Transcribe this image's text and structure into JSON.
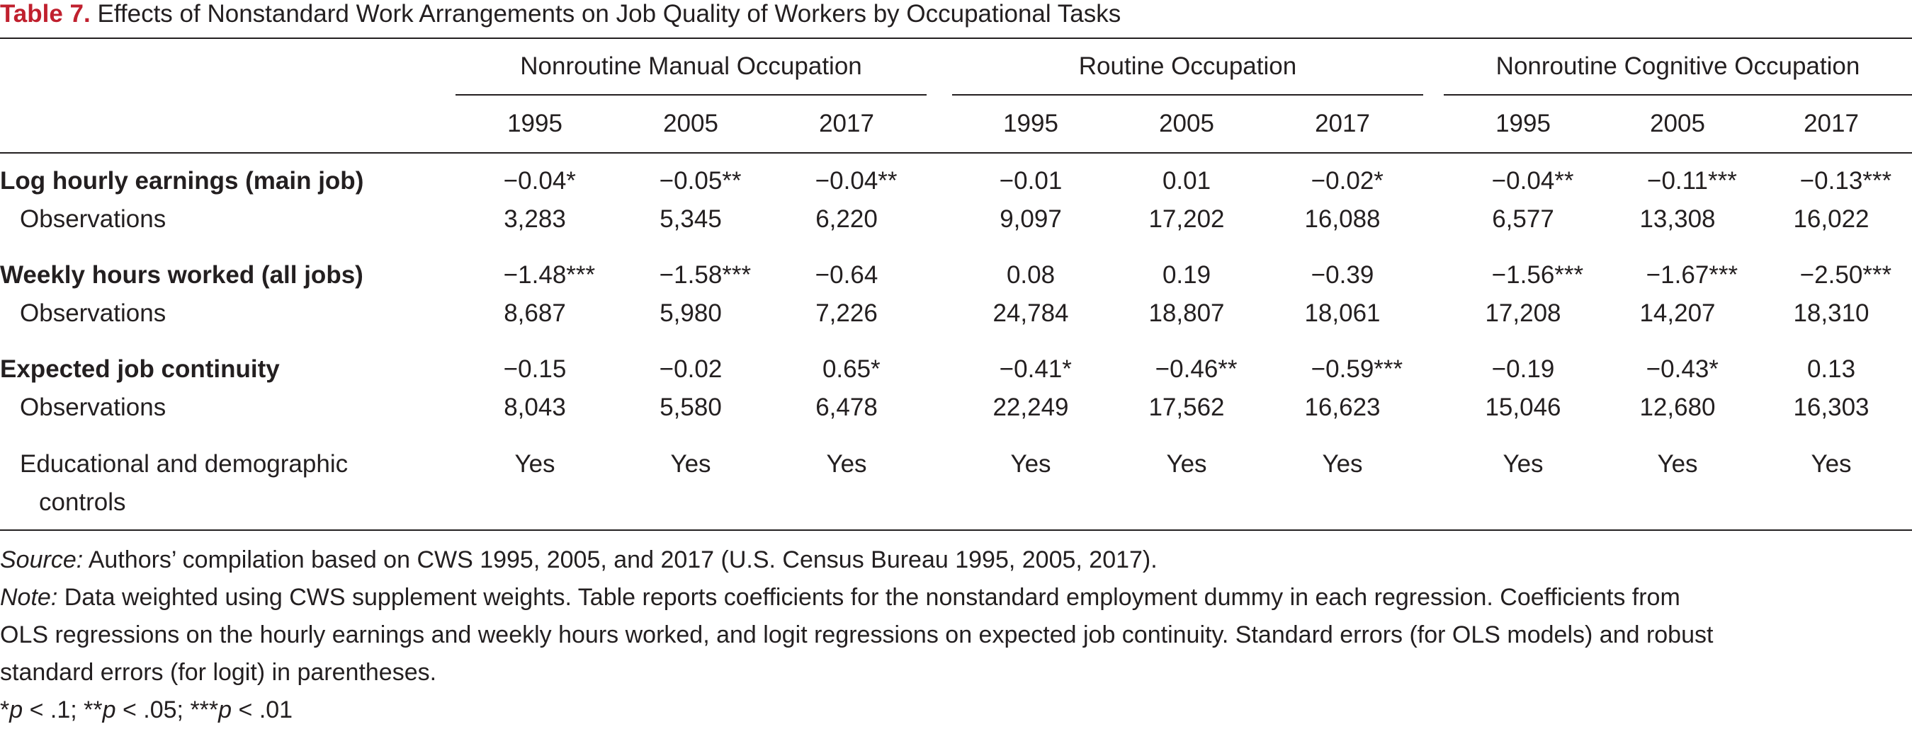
{
  "title": {
    "label": "Table 7.",
    "text": " Effects of Nonstandard Work Arrangements on Job Quality of Workers by Occupational Tasks"
  },
  "groups": [
    "Nonroutine Manual Occupation",
    "Routine Occupation",
    "Nonroutine Cognitive Occupation"
  ],
  "years": [
    "1995",
    "2005",
    "2017",
    "1995",
    "2005",
    "2017",
    "1995",
    "2005",
    "2017"
  ],
  "rows": [
    {
      "label": "Log hourly earnings (main job)",
      "bold": true,
      "cells": [
        "−0.04*",
        "−0.05**",
        "−0.04**",
        "−0.01",
        "0.01",
        "−0.02*",
        "−0.04**",
        "−0.11***",
        "−0.13***"
      ]
    },
    {
      "label": "Observations",
      "bold": false,
      "cells": [
        "3,283",
        "5,345",
        "6,220",
        "9,097",
        "17,202",
        "16,088",
        "6,577",
        "13,308",
        "16,022"
      ]
    },
    {
      "label": "Weekly hours worked (all jobs)",
      "bold": true,
      "cells": [
        "−1.48***",
        "−1.58***",
        "−0.64",
        "0.08",
        "0.19",
        "−0.39",
        "−1.56***",
        "−1.67***",
        "−2.50***"
      ]
    },
    {
      "label": "Observations",
      "bold": false,
      "cells": [
        "8,687",
        "5,980",
        "7,226",
        "24,784",
        "18,807",
        "18,061",
        "17,208",
        "14,207",
        "18,310"
      ]
    },
    {
      "label": "Expected job continuity",
      "bold": true,
      "cells": [
        "−0.15",
        "−0.02",
        "0.65*",
        "−0.41*",
        "−0.46**",
        "−0.59***",
        "−0.19",
        "−0.43*",
        "0.13"
      ]
    },
    {
      "label": "Observations",
      "bold": false,
      "cells": [
        "8,043",
        "5,580",
        "6,478",
        "22,249",
        "17,562",
        "16,623",
        "15,046",
        "12,680",
        "16,303"
      ]
    },
    {
      "label1": "Educational and demographic",
      "label2": "controls",
      "bold": false,
      "cells": [
        "Yes",
        "Yes",
        "Yes",
        "Yes",
        "Yes",
        "Yes",
        "Yes",
        "Yes",
        "Yes"
      ]
    }
  ],
  "notes": {
    "source_label": "Source:",
    "source_text": " Authors’ compilation based on CWS 1995, 2005, and 2017 (U.S. Census Bureau 1995, 2005, 2017).",
    "note_label": "Note:",
    "note_line1": " Data weighted using CWS supplement weights. Table reports coefficients for the nonstandard employment dummy in each regression. Coefficients from",
    "note_line2": "OLS regressions on the hourly earnings and weekly hours worked, and logit regressions on expected job continuity. Standard errors (for OLS models) and robust",
    "note_line3": "standard errors (for logit) in parentheses.",
    "sig_p1_pre": "*",
    "sig_p1_p": "p",
    "sig_p1_post": " < .1; ",
    "sig_p2_pre": "**",
    "sig_p2_p": "p",
    "sig_p2_post": " < .05; ",
    "sig_p3_pre": "***",
    "sig_p3_p": "p",
    "sig_p3_post": " < .01"
  }
}
